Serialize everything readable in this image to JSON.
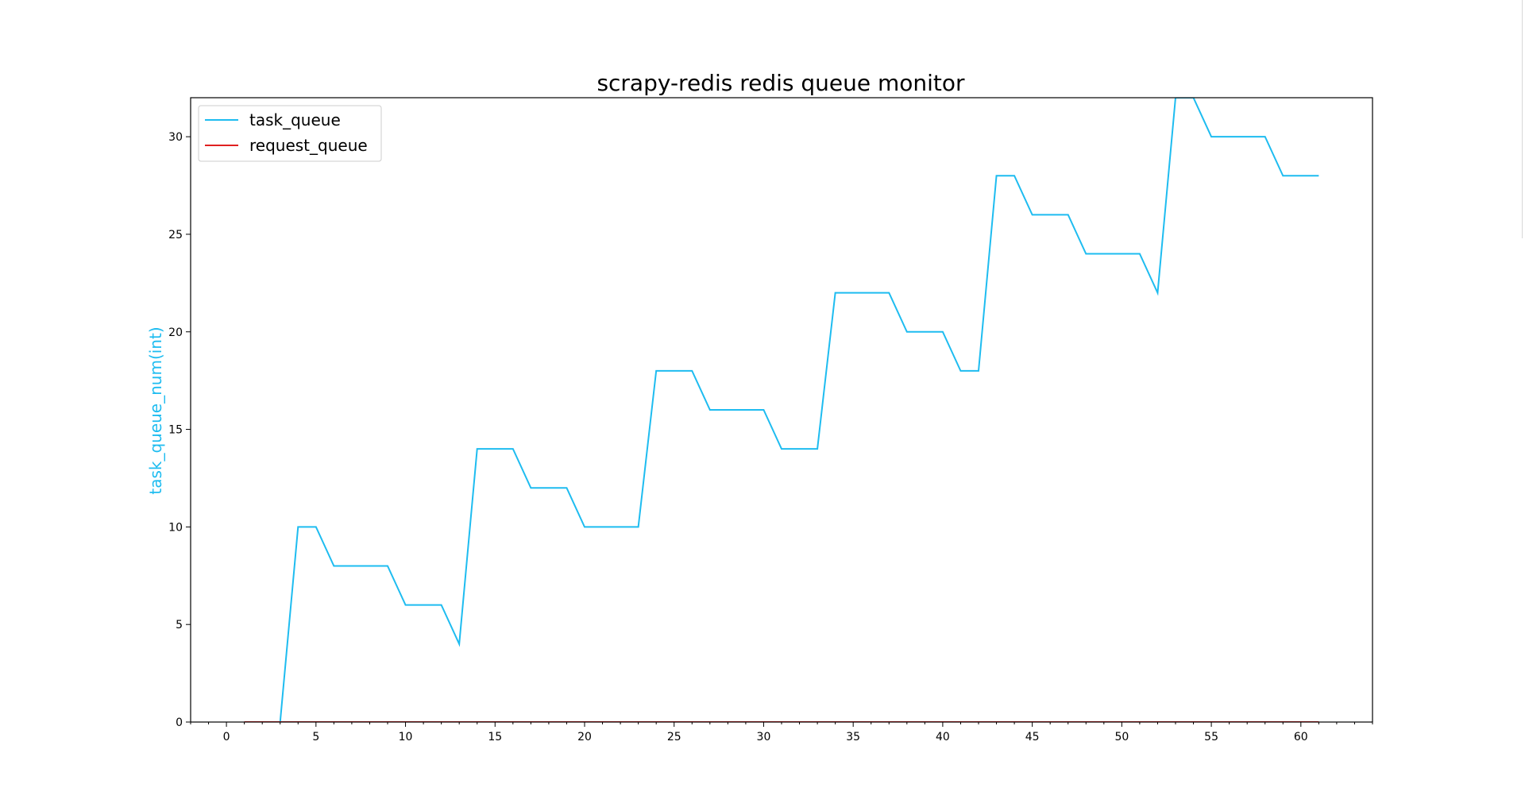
{
  "chart_data": {
    "type": "line",
    "title": "scrapy-redis redis queue monitor",
    "xlabel": "",
    "ylabel": "task_queue_num(int)",
    "xlim": [
      -2,
      64
    ],
    "ylim": [
      0,
      32
    ],
    "x_ticks": [
      0,
      5,
      10,
      15,
      20,
      25,
      30,
      35,
      40,
      45,
      50,
      55,
      60
    ],
    "x_minor_tick_step": 1,
    "y_ticks": [
      0,
      5,
      10,
      15,
      20,
      25,
      30
    ],
    "grid": false,
    "legend_position": "upper-left",
    "colors": {
      "task_queue": "#1ebcf0",
      "request_queue": "#e02020",
      "ylabel": "#1ebcf0"
    },
    "series": [
      {
        "name": "task_queue",
        "x": [
          1,
          2,
          3,
          4,
          5,
          6,
          7,
          8,
          9,
          10,
          11,
          12,
          13,
          14,
          15,
          16,
          17,
          18,
          19,
          20,
          21,
          22,
          23,
          24,
          25,
          26,
          27,
          28,
          29,
          30,
          31,
          32,
          33,
          34,
          35,
          36,
          37,
          38,
          39,
          40,
          41,
          42,
          43,
          44,
          45,
          46,
          47,
          48,
          49,
          50,
          51,
          52,
          53,
          54,
          55,
          56,
          57,
          58,
          59,
          60,
          61
        ],
        "values": [
          0,
          0,
          0,
          10,
          10,
          8,
          8,
          8,
          8,
          6,
          6,
          6,
          4,
          14,
          14,
          14,
          12,
          12,
          12,
          10,
          10,
          10,
          10,
          18,
          18,
          18,
          16,
          16,
          16,
          16,
          14,
          14,
          14,
          22,
          22,
          22,
          22,
          20,
          20,
          20,
          18,
          18,
          28,
          28,
          26,
          26,
          26,
          24,
          24,
          24,
          24,
          22,
          32,
          32,
          30,
          30,
          30,
          30,
          28,
          28,
          28
        ]
      },
      {
        "name": "request_queue",
        "x": [
          1,
          2,
          3,
          4,
          5,
          6,
          7,
          8,
          9,
          10,
          11,
          12,
          13,
          14,
          15,
          16,
          17,
          18,
          19,
          20,
          21,
          22,
          23,
          24,
          25,
          26,
          27,
          28,
          29,
          30,
          31,
          32,
          33,
          34,
          35,
          36,
          37,
          38,
          39,
          40,
          41,
          42,
          43,
          44,
          45,
          46,
          47,
          48,
          49,
          50,
          51,
          52,
          53,
          54,
          55,
          56,
          57,
          58,
          59,
          60,
          61
        ],
        "values": [
          0,
          0,
          0,
          0,
          0,
          0,
          0,
          0,
          0,
          0,
          0,
          0,
          0,
          0,
          0,
          0,
          0,
          0,
          0,
          0,
          0,
          0,
          0,
          0,
          0,
          0,
          0,
          0,
          0,
          0,
          0,
          0,
          0,
          0,
          0,
          0,
          0,
          0,
          0,
          0,
          0,
          0,
          0,
          0,
          0,
          0,
          0,
          0,
          0,
          0,
          0,
          0,
          0,
          0,
          0,
          0,
          0,
          0,
          0,
          0,
          0
        ]
      }
    ]
  }
}
